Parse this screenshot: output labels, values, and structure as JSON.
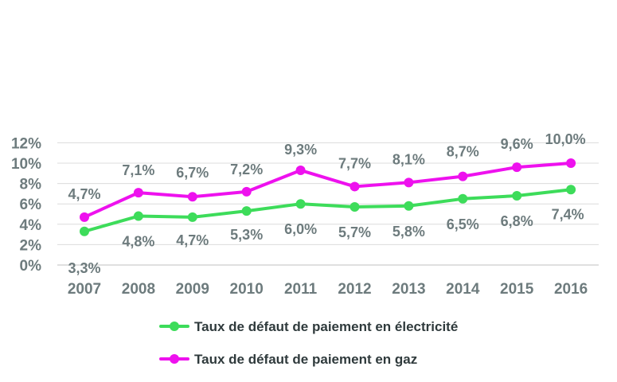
{
  "chart_data": {
    "type": "line",
    "title": "",
    "xlabel": "",
    "ylabel": "",
    "categories": [
      "2007",
      "2008",
      "2009",
      "2010",
      "2011",
      "2012",
      "2013",
      "2014",
      "2015",
      "2016"
    ],
    "ylim": [
      0,
      12
    ],
    "yticks": [
      "0%",
      "2%",
      "4%",
      "6%",
      "8%",
      "10%",
      "12%"
    ],
    "grid": true,
    "legend_position": "bottom",
    "series": [
      {
        "name": "Taux de défaut de paiement en électricité",
        "color": "#3ddc5a",
        "values": [
          3.3,
          4.8,
          4.7,
          5.3,
          6.0,
          5.7,
          5.8,
          6.5,
          6.8,
          7.4
        ],
        "labels": [
          "3,3%",
          "4,8%",
          "4,7%",
          "5,3%",
          "6,0%",
          "5,7%",
          "5,8%",
          "6,5%",
          "6,8%",
          "7,4%"
        ]
      },
      {
        "name": "Taux de défaut de paiement en gaz",
        "color": "#ee11ee",
        "values": [
          4.7,
          7.1,
          6.7,
          7.2,
          9.3,
          7.7,
          8.1,
          8.7,
          9.6,
          10.0
        ],
        "labels": [
          "4,7%",
          "7,1%",
          "6,7%",
          "7,2%",
          "9,3%",
          "7,7%",
          "8,1%",
          "8,7%",
          "9,6%",
          "10,0%"
        ]
      }
    ]
  }
}
